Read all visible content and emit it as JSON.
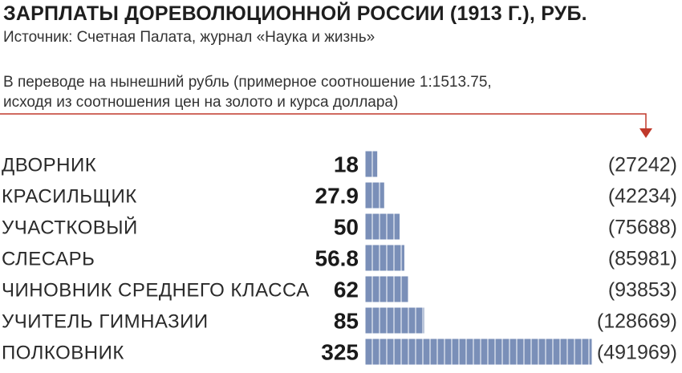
{
  "header": {
    "title": "ЗАРПЛАТЫ ДОРЕВОЛЮЦИОННОЙ РОССИИ (1913 Г.), РУБ.",
    "source": "Источник: Счетная Палата, журнал «Наука и жизнь»",
    "note_line1": "В переводе на нынешний рубль (примерное соотношение 1:1513.75,",
    "note_line2": "исходя из соотношения цен на золото и курса доллара)"
  },
  "colors": {
    "bar": "#7a8fb8",
    "bar_stroke": "#ffffff",
    "leader": "#c0392b"
  },
  "chart_data": {
    "type": "bar",
    "orientation": "horizontal",
    "categories": [
      "ДВОРНИК",
      "КРАСИЛЬЩИК",
      "УЧАСТКОВЫЙ",
      "СЛЕСАРЬ",
      "ЧИНОВНИК СРЕДНЕГО КЛАССА",
      "УЧИТЕЛЬ ГИМНАЗИИ",
      "ПОЛКОВНИК"
    ],
    "value_labels": [
      "18",
      "27.9",
      "50",
      "56.8",
      "62",
      "85",
      "325"
    ],
    "modern_labels": [
      "(27242)",
      "(42234)",
      "(75688)",
      "(85981)",
      "(93853)",
      "(128669)",
      "(491969)"
    ],
    "series": [
      {
        "values": [
          18,
          27.9,
          50,
          56.8,
          62,
          85,
          325
        ]
      },
      {
        "values": [
          27242,
          42234,
          75688,
          85981,
          93853,
          128669,
          491969
        ]
      }
    ],
    "xlim": [
      0,
      325
    ],
    "grid": false,
    "legend": "none"
  }
}
